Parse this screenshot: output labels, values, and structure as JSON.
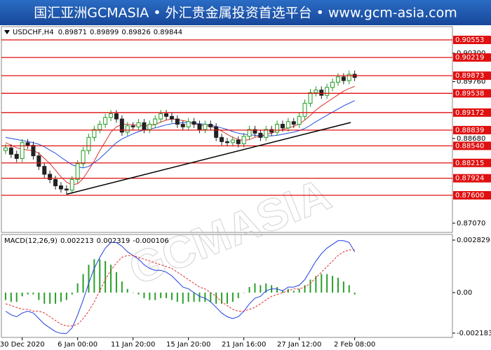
{
  "header": {
    "title": "国汇亚洲GCMASIA • 外汇贵金属投资首选平台 • www.gcm-asia.com"
  },
  "watermark": "GCMASIA",
  "chart_data": [
    {
      "type": "candlestick",
      "symbol": "USDCHF,H4",
      "ohlc": [
        0.89871,
        0.89899,
        0.89826,
        0.89844
      ],
      "categories": [
        null,
        null,
        null,
        "30 Dec 2020",
        null,
        null,
        null,
        null,
        null,
        null,
        null,
        null,
        null,
        "6 Jan 00:00",
        null,
        null,
        null,
        null,
        null,
        null,
        null,
        null,
        null,
        "11 Jan 20:00",
        null,
        null,
        null,
        null,
        null,
        null,
        null,
        null,
        null,
        "15 Jan 20:00",
        null,
        null,
        null,
        null,
        null,
        null,
        null,
        null,
        null,
        "21 Jan 16:00",
        null,
        null,
        null,
        null,
        null,
        null,
        null,
        null,
        null,
        "27 Jan 12:00",
        null,
        null,
        null,
        null,
        null,
        null,
        null,
        null,
        null,
        "2 Feb 08:00"
      ],
      "open": [
        0.8845,
        0.885,
        0.8838,
        0.883,
        0.886,
        0.8855,
        0.8835,
        0.8815,
        0.88,
        0.879,
        0.8778,
        0.8772,
        0.877,
        0.879,
        0.882,
        0.8845,
        0.887,
        0.8885,
        0.8895,
        0.8908,
        0.8915,
        0.8905,
        0.888,
        0.8892,
        0.889,
        0.8898,
        0.8885,
        0.8895,
        0.8905,
        0.8915,
        0.891,
        0.8905,
        0.8895,
        0.889,
        0.89,
        0.8895,
        0.8885,
        0.8895,
        0.889,
        0.887,
        0.8862,
        0.886,
        0.8865,
        0.8858,
        0.8872,
        0.8885,
        0.8878,
        0.887,
        0.8885,
        0.888,
        0.8895,
        0.8888,
        0.89,
        0.8895,
        0.891,
        0.8935,
        0.8955,
        0.896,
        0.895,
        0.8965,
        0.8975,
        0.8985,
        0.8978,
        0.899
      ],
      "high": [
        0.8857,
        0.8857,
        0.8845,
        0.8867,
        0.8867,
        0.8862,
        0.8842,
        0.8822,
        0.8807,
        0.8797,
        0.8785,
        0.8779,
        0.8797,
        0.8827,
        0.8852,
        0.8877,
        0.8892,
        0.8902,
        0.8915,
        0.8922,
        0.8922,
        0.8912,
        0.8899,
        0.8899,
        0.8905,
        0.8905,
        0.8902,
        0.8912,
        0.8922,
        0.8922,
        0.8917,
        0.8912,
        0.8902,
        0.8907,
        0.8907,
        0.8902,
        0.8902,
        0.8902,
        0.8897,
        0.8877,
        0.8869,
        0.8872,
        0.8872,
        0.8879,
        0.8892,
        0.8892,
        0.8885,
        0.8892,
        0.8892,
        0.8902,
        0.8902,
        0.8907,
        0.8907,
        0.8917,
        0.8942,
        0.8962,
        0.8967,
        0.8967,
        0.8972,
        0.8982,
        0.8992,
        0.8992,
        0.8997,
        0.8997
      ],
      "low": [
        0.8838,
        0.8831,
        0.8823,
        0.8823,
        0.8848,
        0.8828,
        0.8808,
        0.8793,
        0.8783,
        0.8771,
        0.8765,
        0.8762,
        0.8763,
        0.8783,
        0.8813,
        0.8838,
        0.8863,
        0.8878,
        0.8888,
        0.8901,
        0.8898,
        0.8873,
        0.8873,
        0.8883,
        0.8883,
        0.8878,
        0.8878,
        0.8888,
        0.8898,
        0.8903,
        0.8898,
        0.8888,
        0.8883,
        0.8883,
        0.8888,
        0.8878,
        0.8878,
        0.8883,
        0.8863,
        0.8855,
        0.8853,
        0.8853,
        0.8851,
        0.8851,
        0.8865,
        0.8871,
        0.8863,
        0.8863,
        0.8873,
        0.8873,
        0.8881,
        0.8881,
        0.8888,
        0.8888,
        0.8903,
        0.8928,
        0.8948,
        0.8943,
        0.8943,
        0.8958,
        0.8968,
        0.8971,
        0.8971,
        0.8977
      ],
      "close": [
        0.885,
        0.8838,
        0.883,
        0.886,
        0.8855,
        0.8835,
        0.8815,
        0.88,
        0.879,
        0.8778,
        0.8772,
        0.877,
        0.879,
        0.882,
        0.8845,
        0.887,
        0.8885,
        0.8895,
        0.8908,
        0.8915,
        0.8905,
        0.888,
        0.8892,
        0.889,
        0.8898,
        0.8885,
        0.8895,
        0.8905,
        0.8915,
        0.891,
        0.8905,
        0.8895,
        0.889,
        0.89,
        0.8895,
        0.8885,
        0.8895,
        0.889,
        0.887,
        0.8862,
        0.886,
        0.8865,
        0.8858,
        0.8872,
        0.8885,
        0.8878,
        0.887,
        0.8885,
        0.888,
        0.8895,
        0.8888,
        0.89,
        0.8895,
        0.891,
        0.8935,
        0.8955,
        0.896,
        0.895,
        0.8965,
        0.8975,
        0.8985,
        0.8978,
        0.899,
        0.8984
      ],
      "up_color": "#1f9a1f",
      "down_color": "#222222",
      "moving_averages": [
        {
          "color": "#e03030",
          "values": [
            0.886,
            0.8855,
            0.885,
            0.8848,
            0.8846,
            0.8845,
            0.884,
            0.883,
            0.882,
            0.8808,
            0.8795,
            0.8785,
            0.878,
            0.8782,
            0.8792,
            0.8808,
            0.8825,
            0.8845,
            0.8862,
            0.888,
            0.889,
            0.8895,
            0.8895,
            0.8894,
            0.8893,
            0.8892,
            0.8892,
            0.8895,
            0.8899,
            0.8903,
            0.8905,
            0.8904,
            0.8902,
            0.89,
            0.8896,
            0.8893,
            0.8892,
            0.8891,
            0.8888,
            0.8882,
            0.8876,
            0.887,
            0.8866,
            0.8864,
            0.8866,
            0.887,
            0.8873,
            0.8876,
            0.8878,
            0.8882,
            0.8885,
            0.8888,
            0.8891,
            0.8896,
            0.8903,
            0.8912,
            0.8922,
            0.893,
            0.8937,
            0.8944,
            0.8951,
            0.8958,
            0.8963,
            0.8967
          ]
        },
        {
          "color": "#2050e0",
          "values": [
            0.887,
            0.8868,
            0.8866,
            0.8864,
            0.8862,
            0.886,
            0.8857,
            0.8852,
            0.8846,
            0.884,
            0.8832,
            0.8825,
            0.8818,
            0.8814,
            0.8812,
            0.8815,
            0.8822,
            0.883,
            0.884,
            0.885,
            0.886,
            0.8867,
            0.8872,
            0.8877,
            0.8881,
            0.8884,
            0.8886,
            0.8888,
            0.8891,
            0.8894,
            0.8896,
            0.8897,
            0.8898,
            0.8898,
            0.8897,
            0.8896,
            0.8895,
            0.8893,
            0.8891,
            0.8888,
            0.8885,
            0.8881,
            0.8878,
            0.8876,
            0.8875,
            0.8874,
            0.8873,
            0.8873,
            0.8873,
            0.8874,
            0.8876,
            0.8878,
            0.888,
            0.8883,
            0.8887,
            0.8893,
            0.89,
            0.8906,
            0.8912,
            0.8918,
            0.8924,
            0.893,
            0.8935,
            0.894
          ]
        }
      ],
      "levels": [
        0.90553,
        0.90219,
        0.89873,
        0.89538,
        0.89172,
        0.88839,
        {
          "value": 0.8854,
          "label": "0.88540"
        },
        0.88215,
        0.87924,
        {
          "value": 0.876,
          "label": "0.87600"
        }
      ],
      "level_color": "#e01010",
      "ylim": [
        0.86895,
        0.90806
      ],
      "yticks": [
        {
          "value": 0.903,
          "label": "0.90300"
        },
        {
          "value": 0.8976,
          "label": "0.89760"
        },
        {
          "value": 0.8868,
          "label": "0.88680"
        },
        {
          "value": 0.8707,
          "label": "0.87070"
        }
      ]
    },
    {
      "type": "macd",
      "title": "MACD(12,26,9)",
      "readout": [
        0.002213,
        0.002319,
        -0.000106
      ],
      "histogram": {
        "color": "#2aa02a",
        "values": [
          -0.0004,
          -0.0005,
          -0.0005,
          -0.0002,
          -0.0001,
          -0.0001,
          -0.0004,
          -0.0006,
          -0.0006,
          -0.0006,
          -0.0005,
          -0.0004,
          -0.0001,
          0.0005,
          0.001,
          0.0015,
          0.0018,
          0.0018,
          0.0017,
          0.0015,
          0.0011,
          0.0006,
          0.0002,
          0,
          -0.0001,
          -0.0003,
          -0.0004,
          -0.0004,
          -0.0003,
          -0.0003,
          -0.0004,
          -0.0005,
          -0.0006,
          -0.0005,
          -0.0005,
          -0.0005,
          -0.0005,
          -0.0005,
          -0.0006,
          -0.0006,
          -0.0006,
          -0.0005,
          -0.0003,
          0,
          0.0003,
          0.0005,
          0.0004,
          0.0005,
          0.0004,
          0.0003,
          0.0001,
          0.0002,
          0.0001,
          0.0002,
          0.0004,
          0.0007,
          0.0009,
          0.001,
          0.001,
          0.0009,
          0.0008,
          0.0006,
          0.0004,
          -0.0001
        ]
      },
      "main": {
        "color": "#1f3fe0",
        "values": [
          -0.001,
          -0.0012,
          -0.0013,
          -0.0011,
          -0.001,
          -0.0011,
          -0.0014,
          -0.0017,
          -0.0019,
          -0.0021,
          -0.0022,
          -0.0022,
          -0.0019,
          -0.0012,
          -0.0004,
          0.0005,
          0.0013,
          0.0019,
          0.0024,
          0.0027,
          0.0027,
          0.0025,
          0.0022,
          0.002,
          0.0018,
          0.0015,
          0.0013,
          0.0012,
          0.0012,
          0.0011,
          0.0009,
          0.0006,
          0.0003,
          0.0002,
          0,
          -0.0002,
          -0.0003,
          -0.0005,
          -0.0008,
          -0.0011,
          -0.0013,
          -0.0014,
          -0.0013,
          -0.001,
          -0.0006,
          -0.0003,
          -0.0002,
          0.0001,
          0.0002,
          0.0002,
          0.0001,
          0.0003,
          0.0003,
          0.0004,
          0.0007,
          0.0012,
          0.0017,
          0.0021,
          0.0024,
          0.0026,
          0.0028,
          0.0028,
          0.0027,
          0.0022
        ]
      },
      "signal": {
        "color": "#e03030",
        "values": [
          -0.0006,
          -0.0007,
          -0.0008,
          -0.0009,
          -0.0009,
          -0.001,
          -0.001,
          -0.0011,
          -0.0013,
          -0.0015,
          -0.0017,
          -0.0018,
          -0.0018,
          -0.0017,
          -0.0014,
          -0.001,
          -0.0005,
          0.0001,
          0.0007,
          0.0012,
          0.0016,
          0.0019,
          0.002,
          0.002,
          0.0019,
          0.0018,
          0.0017,
          0.0016,
          0.0015,
          0.0014,
          0.0013,
          0.0011,
          0.0009,
          0.0007,
          0.0005,
          0.0003,
          0.0002,
          0,
          -0.0002,
          -0.0005,
          -0.0007,
          -0.0009,
          -0.001,
          -0.001,
          -0.0009,
          -0.0008,
          -0.0006,
          -0.0004,
          -0.0002,
          -0.0001,
          0,
          0.0001,
          0.0002,
          0.0002,
          0.0003,
          0.0005,
          0.0008,
          0.0011,
          0.0014,
          0.0017,
          0.002,
          0.0022,
          0.0023,
          0.0023
        ]
      },
      "ylim": [
        -0.002414,
        0.003131
      ],
      "yticks": [
        0.002829,
        {
          "value": 0,
          "label": "0.00"
        },
        -0.002183
      ]
    }
  ]
}
